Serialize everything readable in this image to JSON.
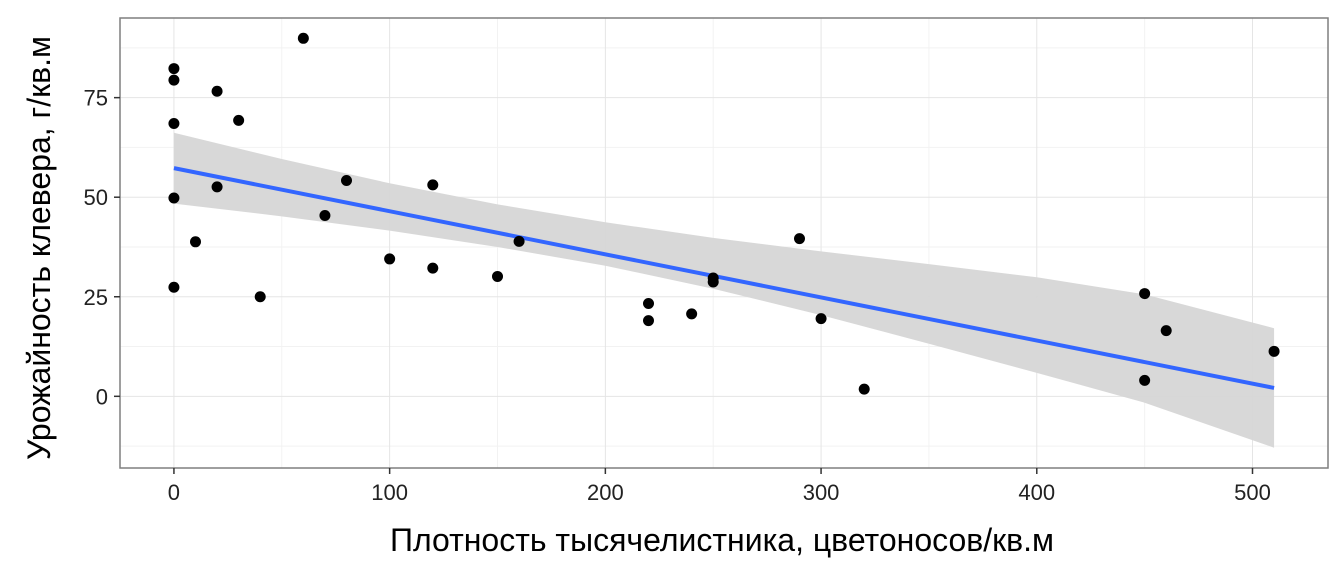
{
  "chart_data": {
    "type": "scatter",
    "title": "",
    "xlabel": "Плотность тысячелистника, цветоносов/кв.м",
    "ylabel": "Урожайность клевера, г/кв.м",
    "xlim": [
      -25,
      535
    ],
    "ylim": [
      -18,
      95
    ],
    "x_ticks": [
      0,
      100,
      200,
      300,
      400,
      500
    ],
    "y_ticks": [
      0,
      25,
      50,
      75
    ],
    "x_tick_labels": [
      "0",
      "100",
      "200",
      "300",
      "400",
      "500"
    ],
    "y_tick_labels": [
      "0",
      "25",
      "50",
      "75"
    ],
    "grid": true,
    "legend": "none",
    "colors": {
      "points": "#000000",
      "line": "#3366ff",
      "ribbon": "#d6d6d6",
      "grid_major": "#e5e5e5",
      "grid_minor": "#f2f2f2",
      "panel_border": "#7f7f7f"
    },
    "points": [
      {
        "x": 0,
        "y": 82.3
      },
      {
        "x": 0,
        "y": 79.4
      },
      {
        "x": 0,
        "y": 68.5
      },
      {
        "x": 0,
        "y": 49.8
      },
      {
        "x": 0,
        "y": 27.4
      },
      {
        "x": 10,
        "y": 38.8
      },
      {
        "x": 20,
        "y": 76.6
      },
      {
        "x": 20,
        "y": 52.6
      },
      {
        "x": 30,
        "y": 69.3
      },
      {
        "x": 40,
        "y": 25.0
      },
      {
        "x": 60,
        "y": 89.9
      },
      {
        "x": 70,
        "y": 45.4
      },
      {
        "x": 80,
        "y": 54.2
      },
      {
        "x": 100,
        "y": 34.5
      },
      {
        "x": 120,
        "y": 53.1
      },
      {
        "x": 120,
        "y": 32.2
      },
      {
        "x": 150,
        "y": 30.1
      },
      {
        "x": 160,
        "y": 38.9
      },
      {
        "x": 220,
        "y": 23.3
      },
      {
        "x": 220,
        "y": 19.0
      },
      {
        "x": 240,
        "y": 20.7
      },
      {
        "x": 250,
        "y": 29.7
      },
      {
        "x": 250,
        "y": 28.7
      },
      {
        "x": 290,
        "y": 39.6
      },
      {
        "x": 300,
        "y": 19.5
      },
      {
        "x": 320,
        "y": 1.8
      },
      {
        "x": 450,
        "y": 25.8
      },
      {
        "x": 450,
        "y": 4.0
      },
      {
        "x": 460,
        "y": 16.5
      },
      {
        "x": 510,
        "y": 11.3
      }
    ],
    "fit_line": {
      "x": [
        0,
        510
      ],
      "y": [
        57.3,
        2.1
      ]
    },
    "confidence_band": {
      "x": [
        0,
        50,
        100,
        150,
        200,
        250,
        300,
        350,
        400,
        450,
        510
      ],
      "lower": [
        48.4,
        45.2,
        41.6,
        37.5,
        32.8,
        27.0,
        20.4,
        13.2,
        5.9,
        -1.6,
        -12.9
      ],
      "upper": [
        66.2,
        59.6,
        53.5,
        48.2,
        43.7,
        39.8,
        36.4,
        33.2,
        29.9,
        25.6,
        17.1
      ]
    }
  }
}
